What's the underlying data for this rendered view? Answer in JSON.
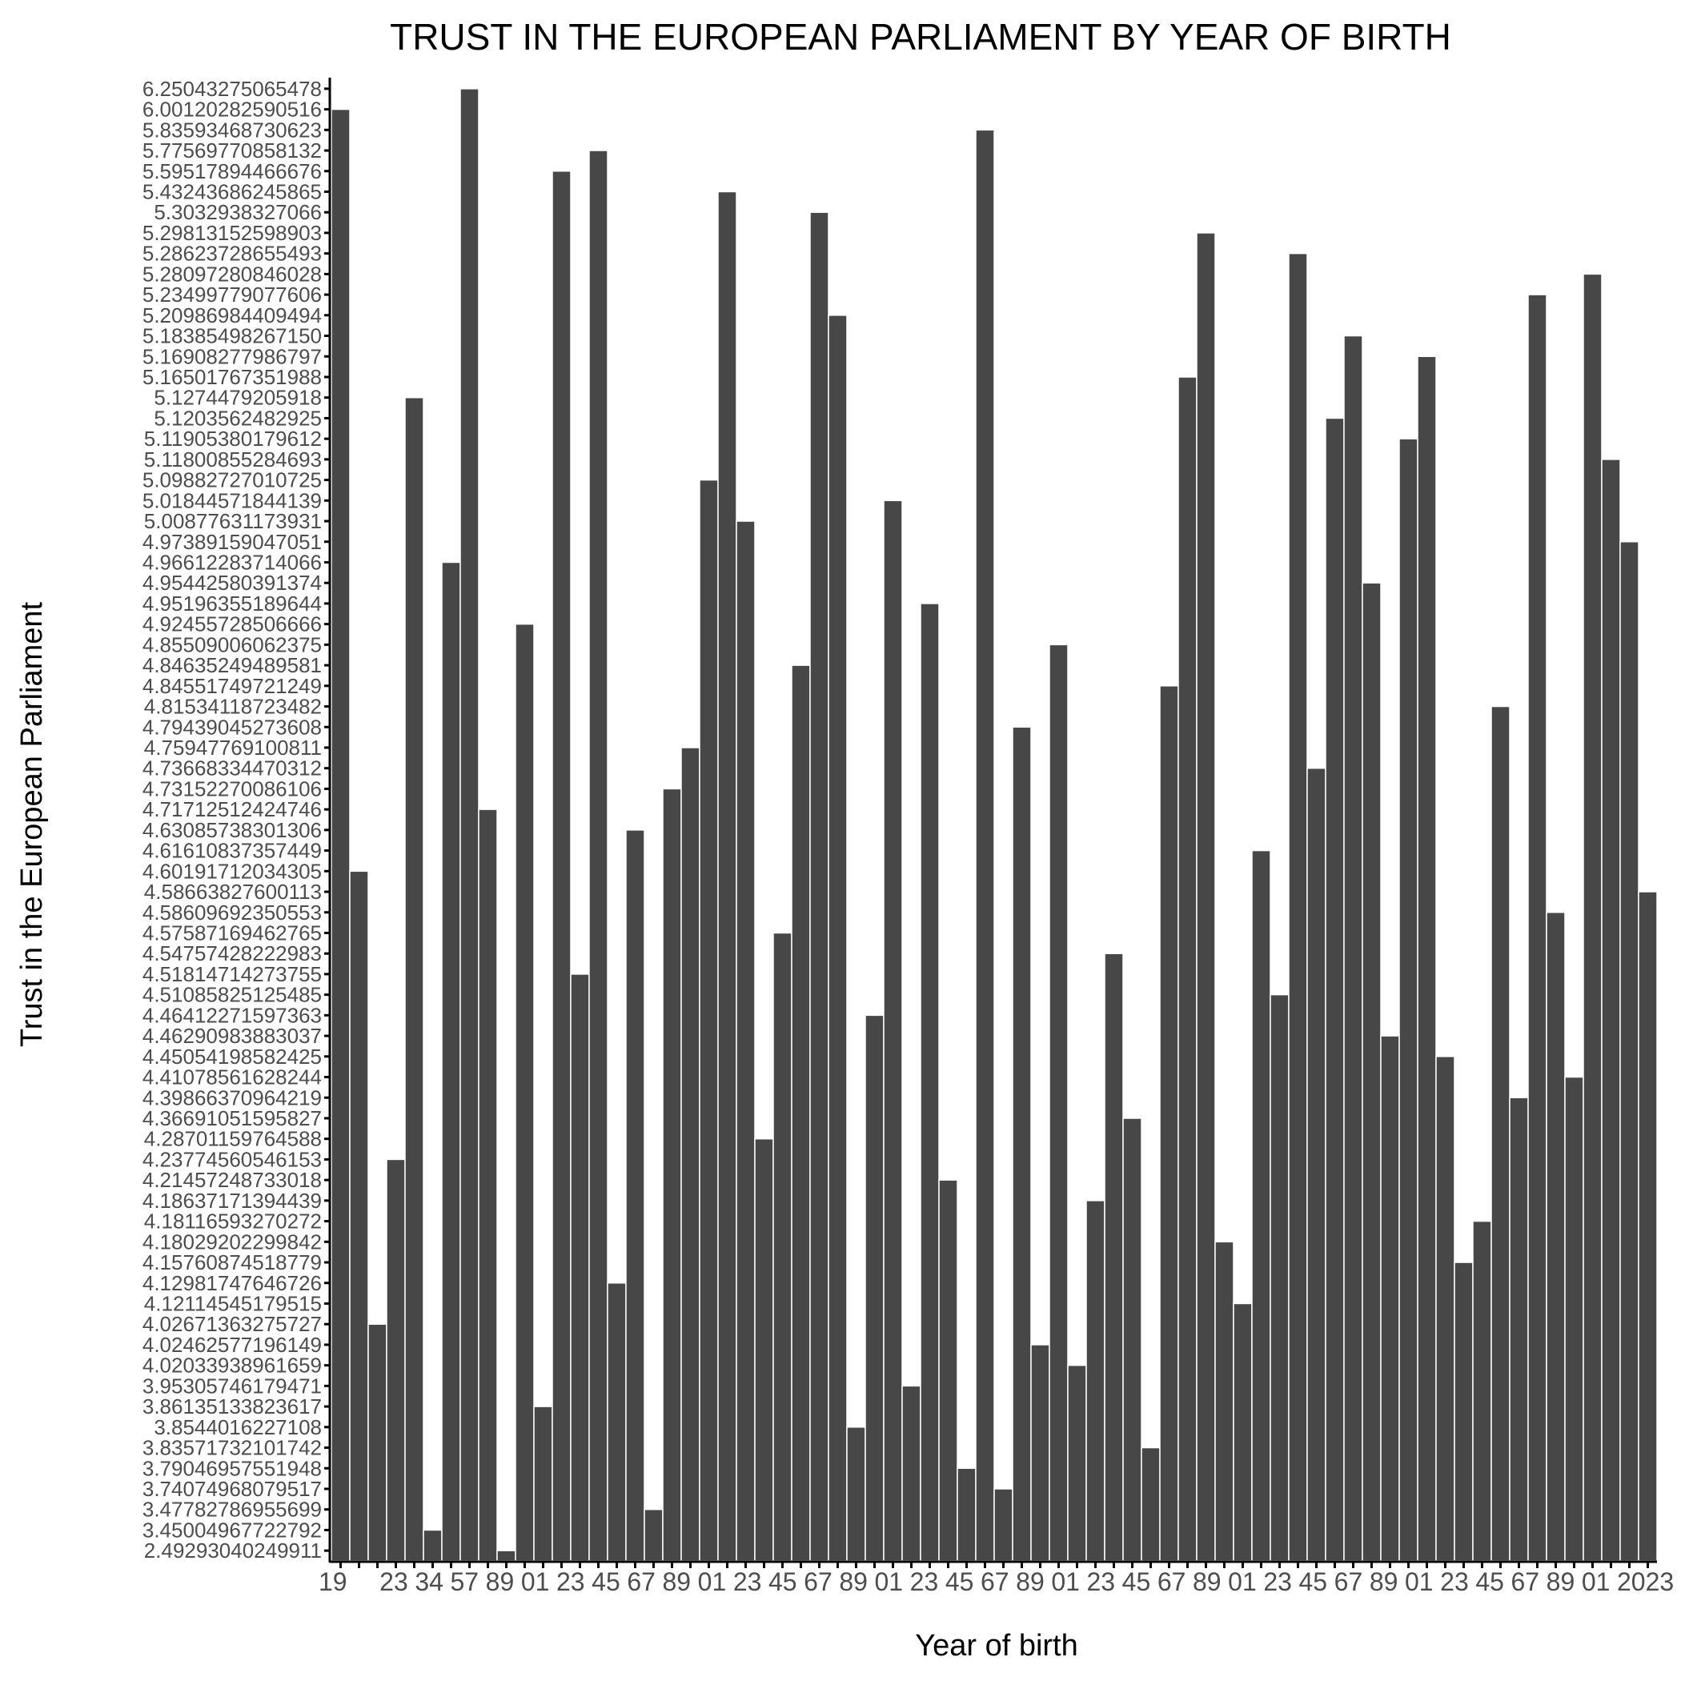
{
  "chart_data": {
    "type": "bar",
    "title": "TRUST IN THE EUROPEAN PARLIAMENT BY YEAR OF BIRTH",
    "xlabel": "Year of birth",
    "ylabel": "Trust in the European Parliament",
    "y_axis": "categorical ordinal axis; tick labels are the sorted distinct values",
    "grid": false,
    "legend": "none",
    "bar_color": "#474747",
    "yticks": [
      "2.49293040249911",
      "3.45004967722792",
      "3.47782786955699",
      "3.74074968079517",
      "3.79046957551948",
      "3.83571732101742",
      "3.8544016227108",
      "3.86135133823617",
      "3.95305746179471",
      "4.02033938961659",
      "4.02462577196149",
      "4.02671363275727",
      "4.12114545179515",
      "4.12981747646726",
      "4.15760874518779",
      "4.18029202299842",
      "4.18116593270272",
      "4.18637171394439",
      "4.21457248733018",
      "4.23774560546153",
      "4.28701159764588",
      "4.36691051595827",
      "4.39866370964219",
      "4.41078561628244",
      "4.45054198582425",
      "4.46290983883037",
      "4.46412271597363",
      "4.51085825125485",
      "4.51814714273755",
      "4.54757428222983",
      "4.57587169462765",
      "4.58609692350553",
      "4.58663827600113",
      "4.60191712034305",
      "4.61610837357449",
      "4.63085738301306",
      "4.71712512424746",
      "4.73152270086106",
      "4.73668334470312",
      "4.75947769100811",
      "4.79439045273608",
      "4.81534118723482",
      "4.84551749721249",
      "4.84635249489581",
      "4.85509006062375",
      "4.92455728506666",
      "4.95196355189644",
      "4.95442580391374",
      "4.96612283714066",
      "4.97389159047051",
      "5.00877631173931",
      "5.01844571844139",
      "5.09882727010725",
      "5.11800855284693",
      "5.11905380179612",
      "5.1203562482925",
      "5.1274479205918",
      "5.16501767351988",
      "5.16908277986797",
      "5.18385498267150",
      "5.20986984409494",
      "5.23499779077606",
      "5.28097280846028",
      "5.28623728655493",
      "5.29813152598903",
      "5.3032938327066",
      "5.43243686245865",
      "5.59517894466676",
      "5.77569770858132",
      "5.83593468730623",
      "6.00120282590516",
      "6.25043275065478"
    ],
    "bars": [
      {
        "x": "1920",
        "y": "6.00120282590516"
      },
      {
        "x": "1921",
        "y": "4.60191712034305"
      },
      {
        "x": "1922",
        "y": "4.02671363275727"
      },
      {
        "x": "1923",
        "y": "4.23774560546153"
      },
      {
        "x": "1924",
        "y": "5.1274479205918"
      },
      {
        "x": "1925",
        "y": "3.45004967722792"
      },
      {
        "x": "1926",
        "y": "4.96612283714066"
      },
      {
        "x": "1927",
        "y": "6.25043275065478"
      },
      {
        "x": "1928",
        "y": "4.71712512424746"
      },
      {
        "x": "1929",
        "y": "2.49293040249911"
      },
      {
        "x": "1930",
        "y": "4.92455728506666"
      },
      {
        "x": "1931",
        "y": "3.86135133823617"
      },
      {
        "x": "1932",
        "y": "5.59517894466676"
      },
      {
        "x": "1933",
        "y": "4.51814714273755"
      },
      {
        "x": "1934",
        "y": "5.77569770858132"
      },
      {
        "x": "1935",
        "y": "4.12981747646726"
      },
      {
        "x": "1936",
        "y": "4.63085738301306"
      },
      {
        "x": "1937",
        "y": "3.47782786955699"
      },
      {
        "x": "1938",
        "y": "4.73152270086106"
      },
      {
        "x": "1939",
        "y": "4.75947769100811"
      },
      {
        "x": "1940",
        "y": "5.09882727010725"
      },
      {
        "x": "1941",
        "y": "5.43243686245865"
      },
      {
        "x": "1942",
        "y": "5.00877631173931"
      },
      {
        "x": "1943",
        "y": "4.28701159764588"
      },
      {
        "x": "1944",
        "y": "4.57587169462765"
      },
      {
        "x": "1945",
        "y": "4.84635249489581"
      },
      {
        "x": "1946",
        "y": "5.3032938327066"
      },
      {
        "x": "1947",
        "y": "5.20986984409494"
      },
      {
        "x": "1948",
        "y": "3.8544016227108"
      },
      {
        "x": "1949",
        "y": "4.46412271597363"
      },
      {
        "x": "1950",
        "y": "5.01844571844139"
      },
      {
        "x": "1951",
        "y": "3.95305746179471"
      },
      {
        "x": "1952",
        "y": "4.95196355189644"
      },
      {
        "x": "1953",
        "y": "4.21457248733018"
      },
      {
        "x": "1954",
        "y": "3.79046957551948"
      },
      {
        "x": "1955",
        "y": "5.83593468730623"
      },
      {
        "x": "1956",
        "y": "3.74074968079517"
      },
      {
        "x": "1957",
        "y": "4.79439045273608"
      },
      {
        "x": "1958",
        "y": "4.02462577196149"
      },
      {
        "x": "1959",
        "y": "4.85509006062375"
      },
      {
        "x": "1960",
        "y": "4.02033938961659"
      },
      {
        "x": "1961",
        "y": "4.18637171394439"
      },
      {
        "x": "1962",
        "y": "4.54757428222983"
      },
      {
        "x": "1963",
        "y": "4.36691051595827"
      },
      {
        "x": "1964",
        "y": "3.83571732101742"
      },
      {
        "x": "1965",
        "y": "4.84551749721249"
      },
      {
        "x": "1966",
        "y": "5.16501767351988"
      },
      {
        "x": "1967",
        "y": "5.29813152598903"
      },
      {
        "x": "1968",
        "y": "4.18029202299842"
      },
      {
        "x": "1969",
        "y": "4.12114545179515"
      },
      {
        "x": "1970",
        "y": "4.61610837357449"
      },
      {
        "x": "1971",
        "y": "4.51085825125485"
      },
      {
        "x": "1972",
        "y": "5.28623728655493"
      },
      {
        "x": "1973",
        "y": "4.73668334470312"
      },
      {
        "x": "1974",
        "y": "5.1203562482925"
      },
      {
        "x": "1975",
        "y": "5.18385498267150"
      },
      {
        "x": "1976",
        "y": "4.95442580391374"
      },
      {
        "x": "1977",
        "y": "4.46290983883037"
      },
      {
        "x": "1978",
        "y": "5.11905380179612"
      },
      {
        "x": "1979",
        "y": "5.16908277986797"
      },
      {
        "x": "1980",
        "y": "4.45054198582425"
      },
      {
        "x": "1981",
        "y": "4.15760874518779"
      },
      {
        "x": "1982",
        "y": "4.18116593270272"
      },
      {
        "x": "1983",
        "y": "4.81534118723482"
      },
      {
        "x": "1984",
        "y": "4.39866370964219"
      },
      {
        "x": "1985",
        "y": "5.23499779077606"
      },
      {
        "x": "1986",
        "y": "4.58609692350553"
      },
      {
        "x": "1987",
        "y": "4.41078561628244"
      },
      {
        "x": "1988",
        "y": "5.28097280846028"
      },
      {
        "x": "1989",
        "y": "5.11800855284693"
      },
      {
        "x": "1990",
        "y": "4.97389159047051"
      },
      {
        "x": "1991",
        "y": "4.58663827600113"
      }
    ],
    "xtick_labels": [
      "19",
      "23",
      "34",
      "57",
      "89",
      "01",
      "23",
      "45",
      "67",
      "89",
      "01",
      "23",
      "45",
      "67",
      "89",
      "01",
      "23",
      "45",
      "67",
      "89",
      "01",
      "23",
      "45",
      "67",
      "89",
      "01",
      "23",
      "45",
      "67",
      "89",
      "01",
      "23",
      "45",
      "67",
      "89",
      "01",
      "2023"
    ]
  }
}
